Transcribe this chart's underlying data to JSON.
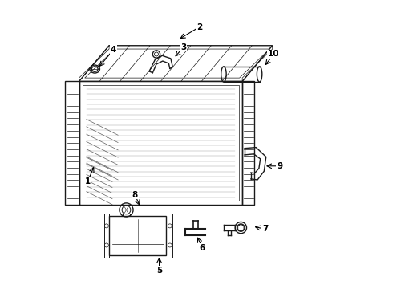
{
  "background_color": "#ffffff",
  "line_color": "#1a1a1a",
  "fig_width": 4.9,
  "fig_height": 3.6,
  "dpi": 100,
  "arrows": {
    "1": [
      0.12,
      0.37,
      0.145,
      0.43
    ],
    "2": [
      0.51,
      0.91,
      0.435,
      0.865
    ],
    "3": [
      0.455,
      0.84,
      0.42,
      0.8
    ],
    "4": [
      0.21,
      0.83,
      0.155,
      0.765
    ],
    "5": [
      0.37,
      0.06,
      0.37,
      0.115
    ],
    "6": [
      0.52,
      0.14,
      0.5,
      0.185
    ],
    "7": [
      0.74,
      0.205,
      0.695,
      0.215
    ],
    "8": [
      0.285,
      0.325,
      0.305,
      0.28
    ],
    "9": [
      0.79,
      0.425,
      0.735,
      0.425
    ],
    "10": [
      0.77,
      0.815,
      0.735,
      0.77
    ]
  }
}
